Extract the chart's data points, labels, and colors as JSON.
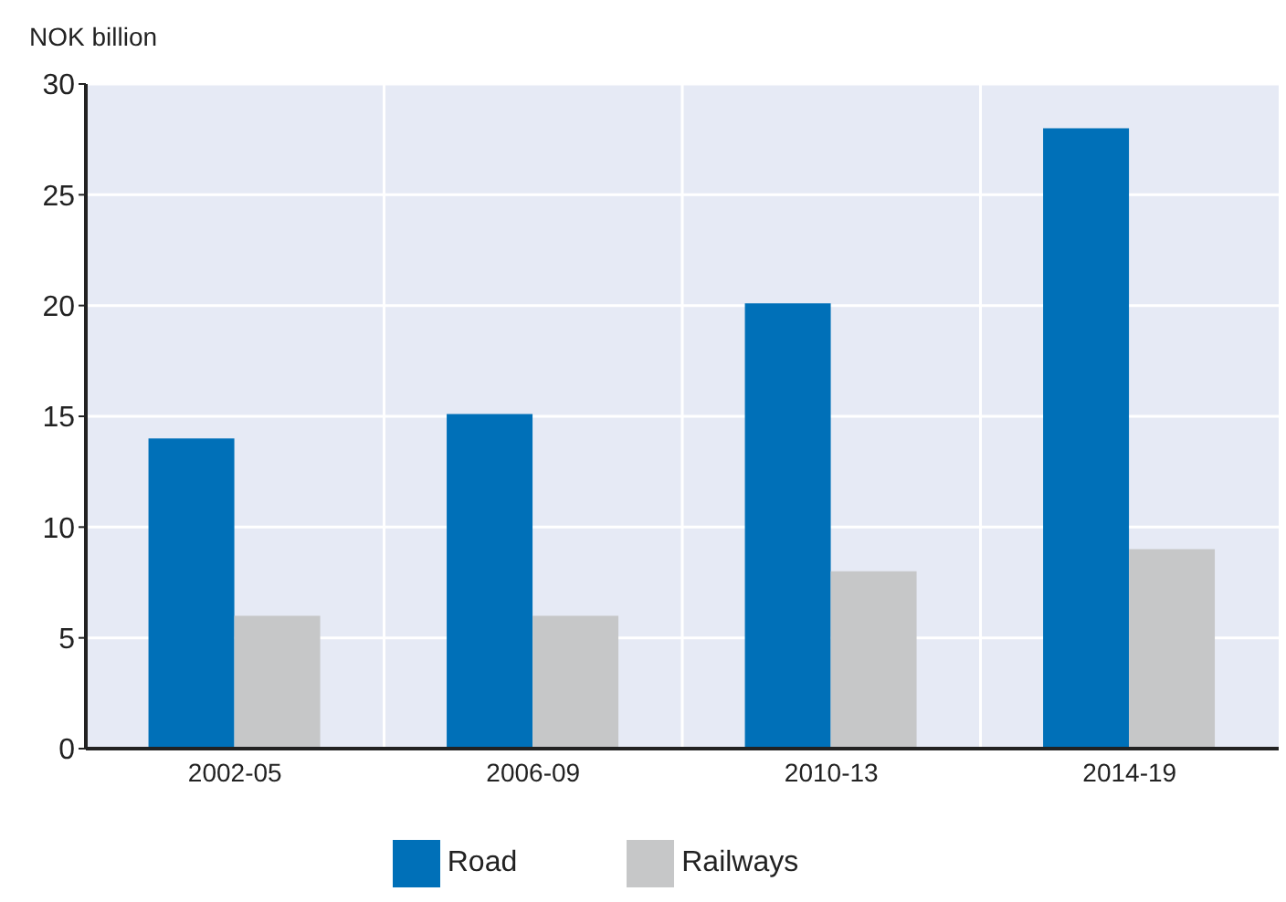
{
  "chart_data": {
    "type": "bar",
    "ylabel": "NOK billion",
    "categories": [
      "2002-05",
      "2006-09",
      "2010-13",
      "2014-19"
    ],
    "series": [
      {
        "name": "Road",
        "color": "#0070b8",
        "values": [
          14,
          15.1,
          20.1,
          28
        ]
      },
      {
        "name": "Railways",
        "color": "#c6c7c8",
        "values": [
          6,
          6,
          8,
          9
        ]
      }
    ],
    "ylim": [
      0,
      30
    ],
    "yticks": [
      0,
      5,
      10,
      15,
      20,
      25,
      30
    ],
    "grid": true,
    "legend": "bottom"
  }
}
